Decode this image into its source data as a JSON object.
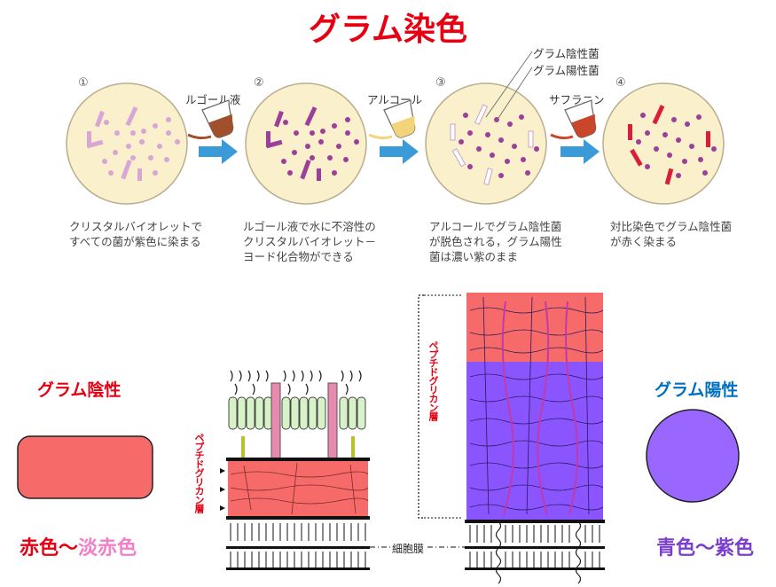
{
  "title": "グラム染色",
  "steps": [
    {
      "num": "①",
      "caption": "クリスタルバイオレットですべての菌が紫色に染まる"
    },
    {
      "num": "②",
      "caption": "ルゴール液で水に不溶性のクリスタルバイオレット－ヨード化合物ができる"
    },
    {
      "num": "③",
      "caption": "アルコールでグラム陰性菌が脱色される，グラム陽性菌は濃い紫のまま"
    },
    {
      "num": "④",
      "caption": "対比染色でグラム陰性菌が赤く染まる"
    }
  ],
  "reagents": [
    "ルゴール液",
    "アルコール",
    "サフラニン"
  ],
  "callouts": {
    "negative": "グラム陰性菌",
    "positive": "グラム陽性菌"
  },
  "bottom": {
    "gram_negative": "グラム陰性",
    "gram_positive": "グラム陽性",
    "peptidoglycan_left": "ペプチドグリカン層",
    "peptidoglycan_right": "ペプチドグリカン層",
    "membrane": "細胞膜",
    "color_neg_1": "赤色",
    "color_neg_sep": "～",
    "color_neg_2": "淡赤色",
    "color_pos": "青色～紫色"
  },
  "colors": {
    "title": "#e60012",
    "dish": "#faf0cc",
    "purple": "#9b3f9b",
    "light_purple": "#d7a6d7",
    "red": "#d81e3a",
    "arrow": "#3a9bd8",
    "neg_cell": "#f76a6a",
    "pos_cell": "#9966ff",
    "pos_wall": "#8a55ff"
  }
}
